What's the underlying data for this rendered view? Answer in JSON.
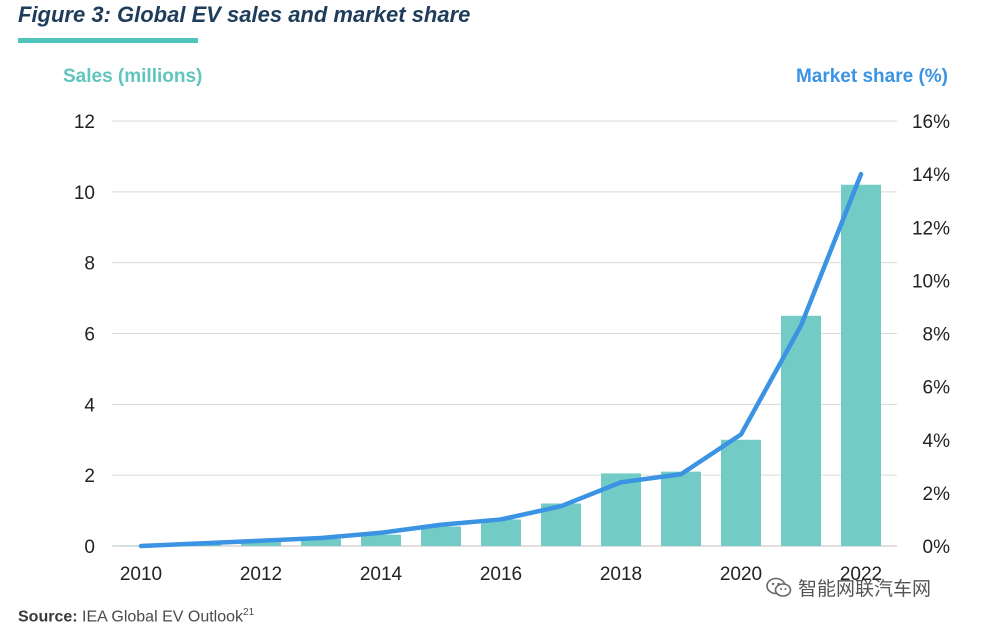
{
  "figure": {
    "title": "Figure 3: Global EV sales and market share",
    "source_label": "Source:",
    "source_text": "IEA Global EV Outlook",
    "source_ref": "21"
  },
  "watermark": {
    "text": "智能网联汽车网"
  },
  "colors": {
    "bar": "#72cbc4",
    "line": "#3b93e3",
    "left_axis_title": "#5fc5be",
    "right_axis_title": "#3b93e3",
    "grid": "#d9d9d9",
    "tick_text": "#222222"
  },
  "chart_data": {
    "type": "bar+line",
    "title": "Global EV sales and market share",
    "ylabel_left": "Sales (millions)",
    "ylabel_right": "Market share (%)",
    "x": [
      2010,
      2011,
      2012,
      2013,
      2014,
      2015,
      2016,
      2017,
      2018,
      2019,
      2020,
      2021,
      2022
    ],
    "x_tick_labels": [
      "2010",
      "2012",
      "2014",
      "2016",
      "2018",
      "2020",
      "2022"
    ],
    "ylim_left": [
      0,
      12
    ],
    "yticks_left": [
      "0",
      "2",
      "4",
      "6",
      "8",
      "10",
      "12"
    ],
    "ylim_right": [
      0,
      16
    ],
    "yticks_right": [
      "0%",
      "2%",
      "4%",
      "6%",
      "8%",
      "10%",
      "12%",
      "14%",
      "16%"
    ],
    "grid": true,
    "series": [
      {
        "name": "Sales (millions)",
        "type": "bar",
        "axis": "left",
        "values": [
          0.01,
          0.05,
          0.12,
          0.2,
          0.32,
          0.55,
          0.75,
          1.2,
          2.05,
          2.1,
          3.0,
          6.5,
          10.2
        ]
      },
      {
        "name": "Market share (%)",
        "type": "line",
        "axis": "right",
        "values": [
          0.0,
          0.1,
          0.2,
          0.3,
          0.5,
          0.8,
          1.0,
          1.5,
          2.4,
          2.7,
          4.2,
          8.3,
          14.0
        ]
      }
    ]
  }
}
